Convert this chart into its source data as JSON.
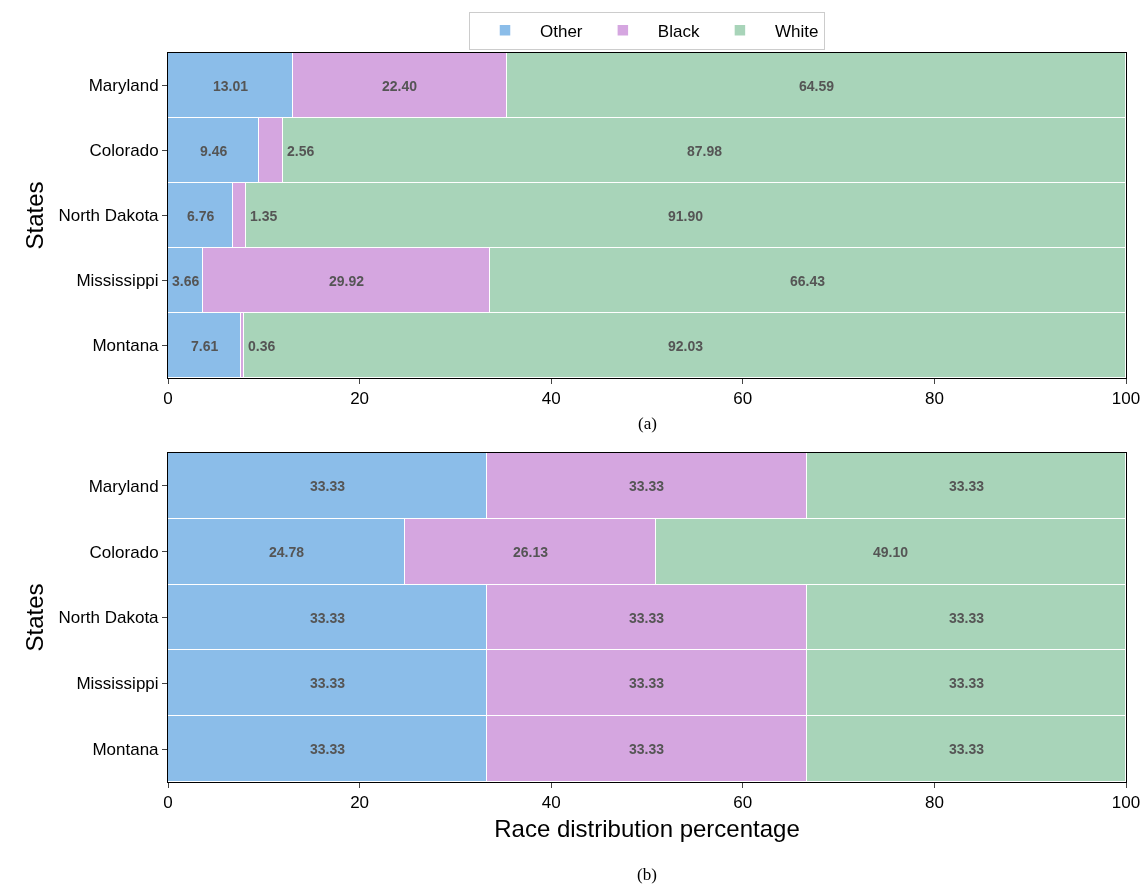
{
  "chart_data": [
    {
      "type": "bar",
      "orientation": "horizontal",
      "stacked": true,
      "ylabel": "States",
      "annotations": [
        "(a)"
      ],
      "categories": [
        "Maryland",
        "Colorado",
        "North Dakota",
        "Mississippi",
        "Montana"
      ],
      "xlim": [
        0,
        100
      ],
      "xticks": [
        0,
        20,
        40,
        60,
        80,
        100
      ],
      "legend": "top",
      "series": [
        {
          "name": "Other",
          "color": "#8bbde9",
          "values": [
            13.01,
            9.46,
            6.76,
            3.66,
            7.61
          ],
          "value_labels": [
            "13.01",
            "9.46",
            "6.76",
            "3.66",
            "7.61"
          ]
        },
        {
          "name": "Black",
          "color": "#d5a6e0",
          "values": [
            22.4,
            2.56,
            1.35,
            29.92,
            0.36
          ],
          "value_labels": [
            "22.40",
            "2.56",
            "1.35",
            "29.92",
            "0.36"
          ]
        },
        {
          "name": "White",
          "color": "#a8d4b9",
          "values": [
            64.59,
            87.98,
            91.9,
            66.43,
            92.03
          ],
          "value_labels": [
            "64.59",
            "87.98",
            "91.90",
            "66.43",
            "92.03"
          ]
        }
      ]
    },
    {
      "type": "bar",
      "orientation": "horizontal",
      "stacked": true,
      "ylabel": "States",
      "xlabel": "Race distribution percentage",
      "annotations": [
        "(b)"
      ],
      "categories": [
        "Maryland",
        "Colorado",
        "North Dakota",
        "Mississippi",
        "Montana"
      ],
      "xlim": [
        0,
        100
      ],
      "xticks": [
        0,
        20,
        40,
        60,
        80,
        100
      ],
      "series": [
        {
          "color": "#8bbde9",
          "values": [
            33.33,
            24.78,
            33.33,
            33.33,
            33.33
          ],
          "value_labels": [
            "33.33",
            "24.78",
            "33.33",
            "33.33",
            "33.33"
          ]
        },
        {
          "color": "#d5a6e0",
          "values": [
            33.33,
            26.13,
            33.33,
            33.33,
            33.33
          ],
          "value_labels": [
            "33.33",
            "26.13",
            "33.33",
            "33.33",
            "33.33"
          ]
        },
        {
          "color": "#a8d4b9",
          "values": [
            33.33,
            49.1,
            33.33,
            33.33,
            33.33
          ],
          "value_labels": [
            "33.33",
            "49.10",
            "33.33",
            "33.33",
            "33.33"
          ]
        }
      ]
    }
  ]
}
